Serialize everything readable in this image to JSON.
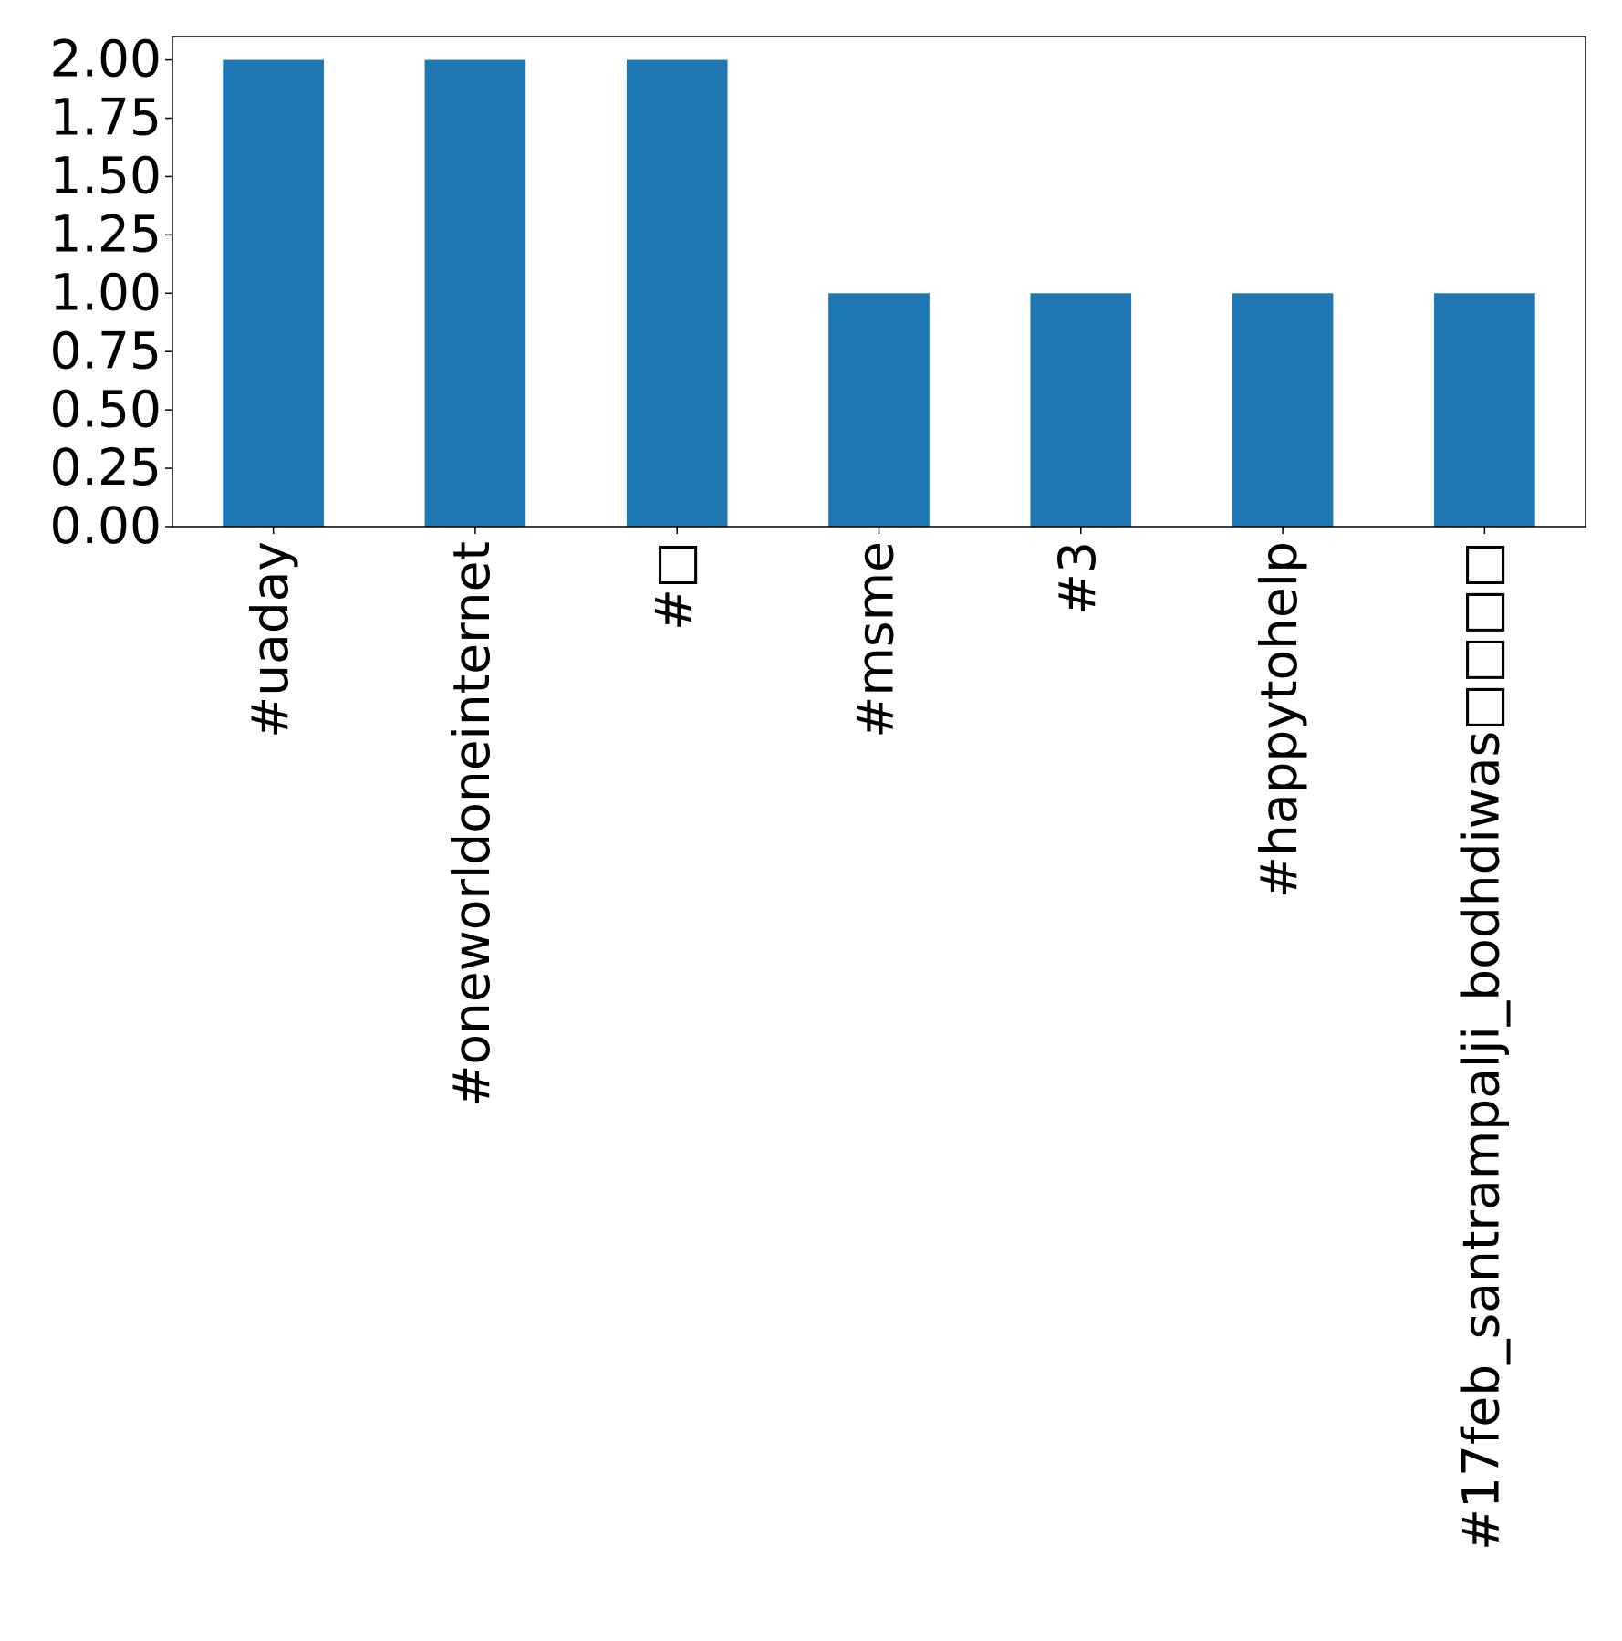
{
  "chart_data": {
    "type": "bar",
    "categories": [
      "#uaday",
      "#oneworldoneinternet",
      "#□",
      "#msme",
      "#3",
      "#happytohelp",
      "#17feb_santrampalji_bodhdiwas□□□□"
    ],
    "values": [
      2,
      2,
      2,
      1,
      1,
      1,
      1
    ],
    "color": "#1f77b4",
    "ylim": [
      0,
      2.1
    ],
    "yticks": [
      {
        "value": 0,
        "label": "0.00"
      },
      {
        "value": 0.25,
        "label": "0.25"
      },
      {
        "value": 0.5,
        "label": "0.50"
      },
      {
        "value": 0.75,
        "label": "0.75"
      },
      {
        "value": 1,
        "label": "1.00"
      },
      {
        "value": 1.25,
        "label": "1.25"
      },
      {
        "value": 1.5,
        "label": "1.50"
      },
      {
        "value": 1.75,
        "label": "1.75"
      },
      {
        "value": 2,
        "label": "2.00"
      }
    ],
    "grid": false
  }
}
